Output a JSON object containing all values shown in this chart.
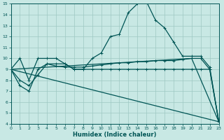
{
  "xlabel": "Humidex (Indice chaleur)",
  "xlim": [
    0,
    23
  ],
  "ylim": [
    4,
    15
  ],
  "xticks": [
    0,
    1,
    2,
    3,
    4,
    5,
    6,
    7,
    8,
    9,
    10,
    11,
    12,
    13,
    14,
    15,
    16,
    17,
    18,
    19,
    20,
    21,
    22,
    23
  ],
  "yticks": [
    4,
    5,
    6,
    7,
    8,
    9,
    10,
    11,
    12,
    13,
    14,
    15
  ],
  "bg_color": "#c8e8e4",
  "grid_color": "#9dc8c2",
  "line_color": "#005555",
  "curves": [
    {
      "x": [
        0,
        1,
        2,
        3,
        4,
        5,
        6,
        7,
        8,
        9,
        10,
        11,
        12,
        13,
        14,
        15,
        16,
        17,
        18,
        19,
        20,
        21,
        22,
        23
      ],
      "y": [
        9,
        10,
        8,
        10,
        10,
        10,
        9.5,
        9,
        9,
        10,
        10.5,
        12,
        12.2,
        14.2,
        15,
        15.2,
        13.5,
        12.8,
        11.5,
        10.2,
        10.2,
        10.2,
        9.2,
        4.2
      ],
      "marker": true,
      "lw": 0.9
    },
    {
      "x": [
        0,
        1,
        2,
        3,
        4,
        5,
        6,
        7,
        8,
        9,
        10,
        11,
        12,
        13,
        14,
        15,
        16,
        17,
        18,
        19,
        20,
        21,
        22,
        23
      ],
      "y": [
        9,
        8,
        7.5,
        8.5,
        9.5,
        9.3,
        9.2,
        9.2,
        9.2,
        9.3,
        9.4,
        9.5,
        9.6,
        9.6,
        9.7,
        9.7,
        9.8,
        9.8,
        9.8,
        9.9,
        10,
        10,
        9,
        4.2
      ],
      "marker": true,
      "lw": 0.9
    },
    {
      "x": [
        0,
        1,
        2,
        3,
        4,
        5,
        6,
        7,
        8,
        9,
        10,
        11,
        12,
        13,
        14,
        15,
        16,
        17,
        18,
        19,
        20,
        21,
        22,
        23
      ],
      "y": [
        9,
        7.5,
        7,
        9,
        9.5,
        9.5,
        9.5,
        9,
        9,
        9,
        9,
        9,
        9,
        9,
        9,
        9,
        9,
        9,
        9,
        9,
        9,
        9,
        9,
        4.2
      ],
      "marker": true,
      "lw": 0.9
    },
    {
      "x": [
        0,
        20,
        23
      ],
      "y": [
        9,
        10,
        4.2
      ],
      "marker": false,
      "lw": 0.9
    },
    {
      "x": [
        0,
        23
      ],
      "y": [
        9,
        4.2
      ],
      "marker": false,
      "lw": 0.9
    }
  ],
  "figsize": [
    3.2,
    2.0
  ],
  "dpi": 100
}
